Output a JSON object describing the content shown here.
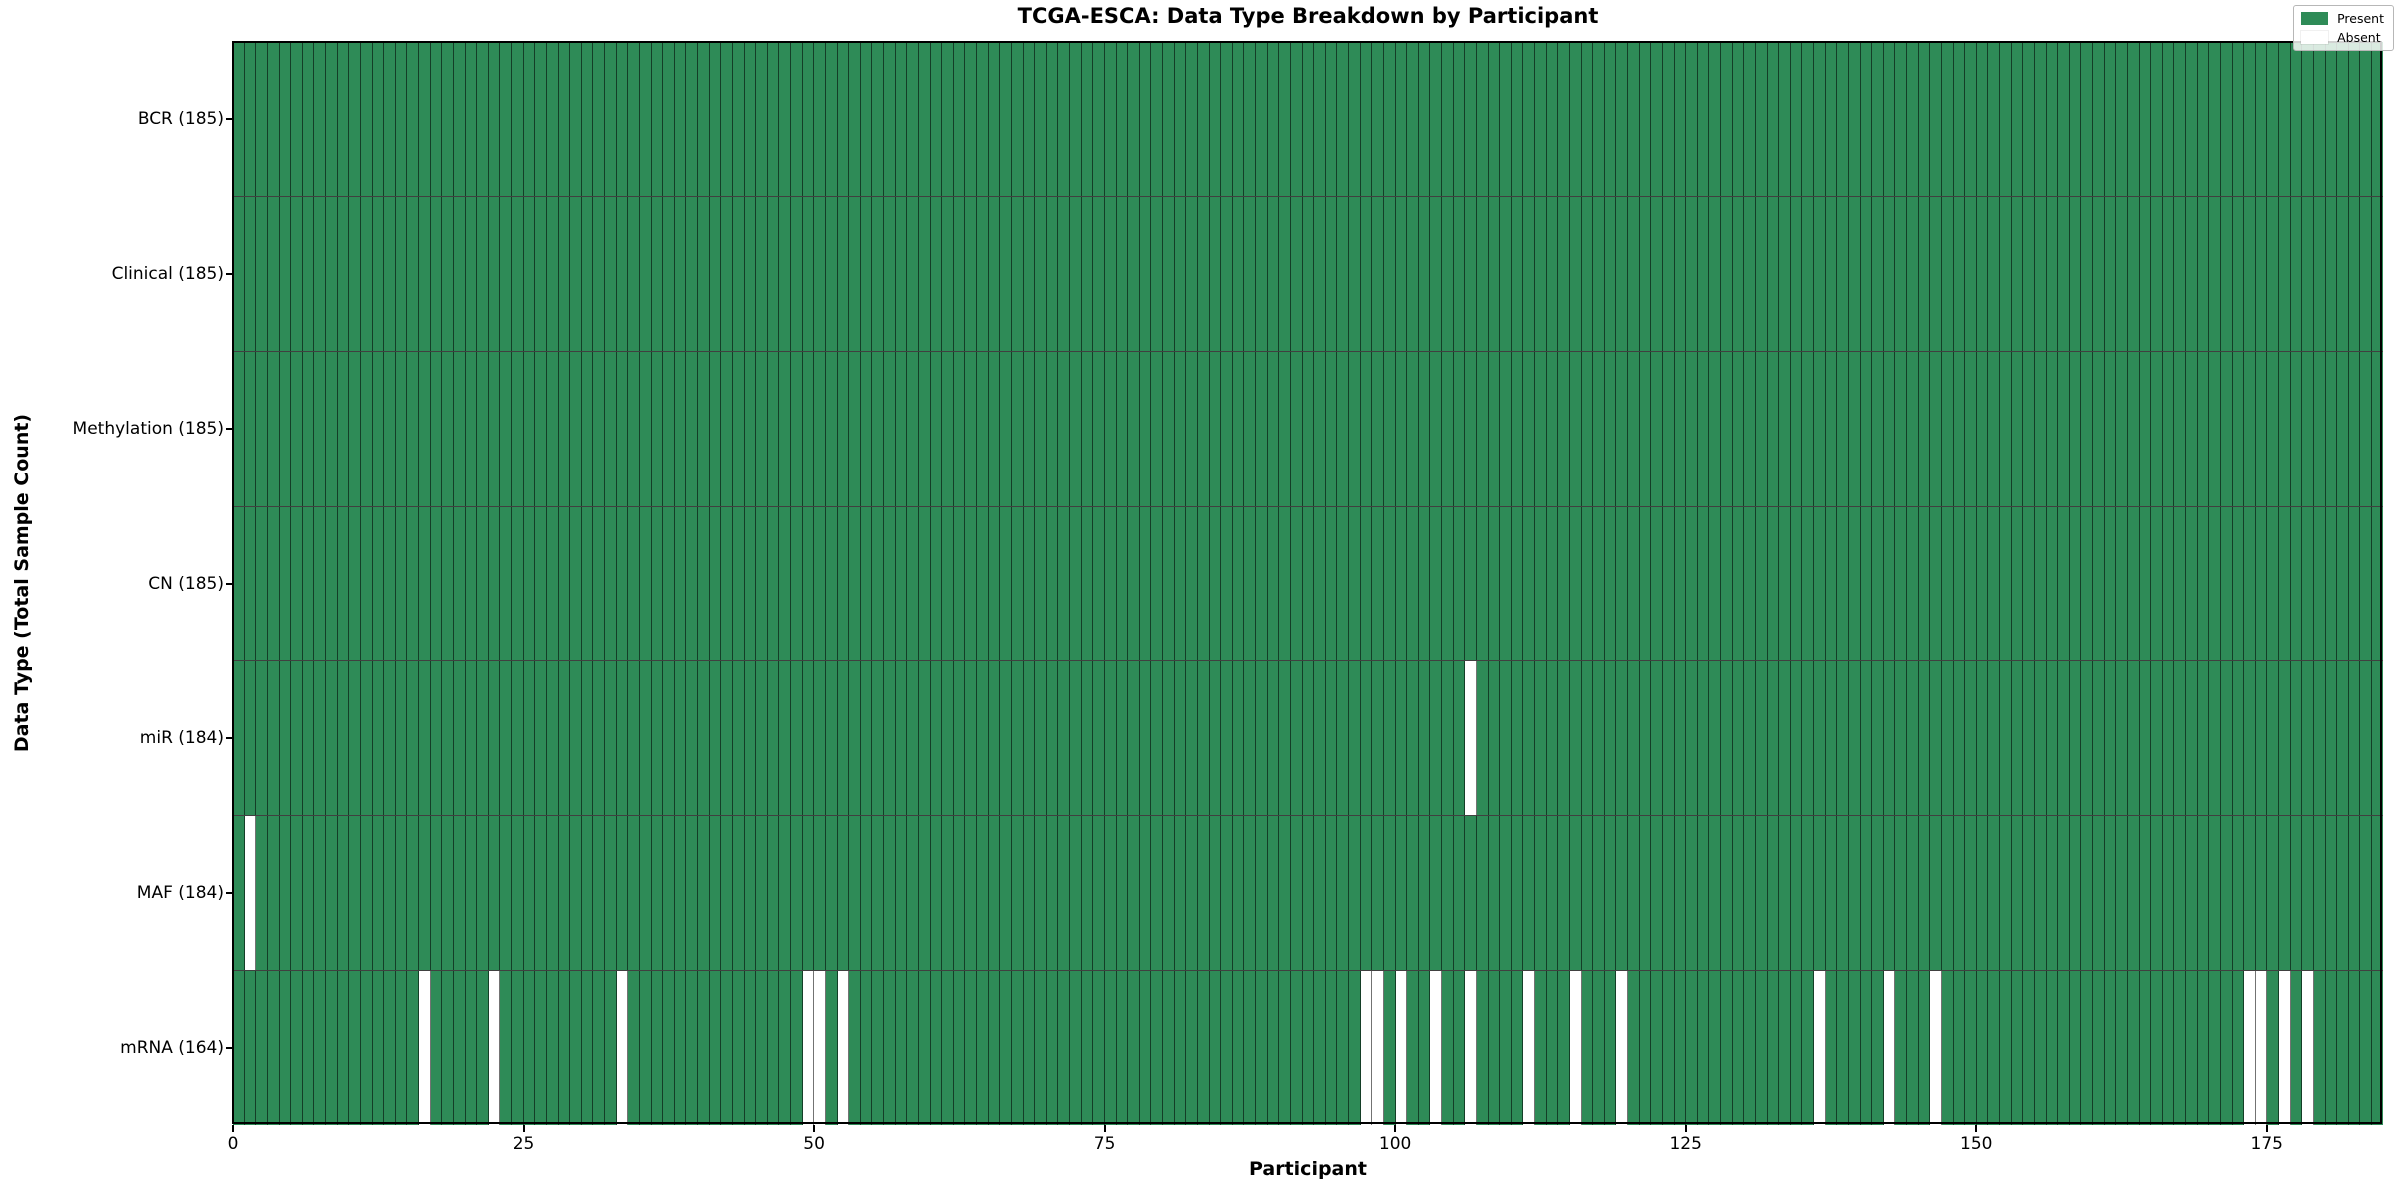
{
  "title": "TCGA-ESCA: Data Type Breakdown by Participant",
  "axes": {
    "x_label": "Participant",
    "y_label": "Data Type (Total Sample Count)"
  },
  "legend": {
    "entries": [
      {
        "label": "Present",
        "color": "#2e8b57"
      },
      {
        "label": "Absent",
        "color": "#ffffff"
      }
    ],
    "position": "upper-right"
  },
  "colors": {
    "present": "#2e8b57",
    "absent": "#ffffff",
    "cell_edge": "rgba(0,0,0,0.55)",
    "row_divider": "rgba(0,0,0,0.75)",
    "axis": "#000000",
    "legend_background": "rgba(255,255,255,0.82)"
  },
  "chart_data": {
    "type": "heatmap",
    "title": "TCGA-ESCA: Data Type Breakdown by Participant",
    "xlabel": "Participant",
    "ylabel": "Data Type (Total Sample Count)",
    "n_participants": 185,
    "x_range": [
      0,
      185
    ],
    "x_ticks": [
      0,
      25,
      50,
      75,
      100,
      125,
      150,
      175
    ],
    "grid": true,
    "legend_entries": [
      "Present",
      "Absent"
    ],
    "legend_position": "upper right",
    "cell_values": {
      "present": 1,
      "absent": 0
    },
    "rows": [
      {
        "label": "BCR (185)",
        "data_type": "BCR",
        "present_count": 185,
        "absent_participants": []
      },
      {
        "label": "Clinical (185)",
        "data_type": "Clinical",
        "present_count": 185,
        "absent_participants": []
      },
      {
        "label": "Methylation (185)",
        "data_type": "Methylation",
        "present_count": 185,
        "absent_participants": []
      },
      {
        "label": "CN (185)",
        "data_type": "CN",
        "present_count": 185,
        "absent_participants": []
      },
      {
        "label": "miR (184)",
        "data_type": "miR",
        "present_count": 184,
        "absent_participants": [
          106
        ]
      },
      {
        "label": "MAF (184)",
        "data_type": "MAF",
        "present_count": 184,
        "absent_participants": [
          1
        ]
      },
      {
        "label": "mRNA (164)",
        "data_type": "mRNA",
        "present_count": 164,
        "absent_participants": [
          16,
          22,
          33,
          49,
          50,
          52,
          97,
          98,
          100,
          103,
          106,
          111,
          115,
          119,
          136,
          142,
          146,
          173,
          174,
          176,
          178
        ]
      }
    ]
  }
}
